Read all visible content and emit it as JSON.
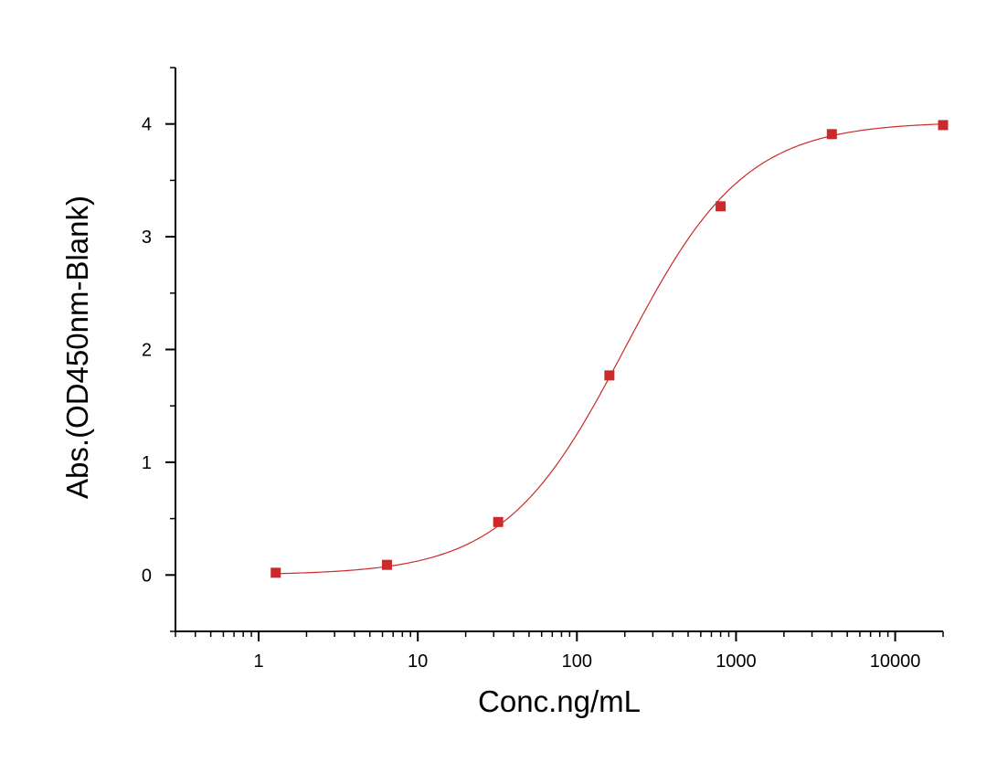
{
  "chart_data": {
    "type": "scatter",
    "title": "",
    "xlabel": "Conc.ng/mL",
    "ylabel": "Abs.(OD450nm-Blank)",
    "x_scale": "log",
    "xlim": [
      0.3,
      20000
    ],
    "ylim": [
      -0.5,
      4.5
    ],
    "x_ticks": [
      1,
      10,
      100,
      1000,
      10000
    ],
    "x_tick_labels": [
      "1",
      "10",
      "100",
      "1000",
      "10000"
    ],
    "y_ticks": [
      0,
      1,
      2,
      3,
      4
    ],
    "y_tick_labels": [
      "0",
      "1",
      "2",
      "3",
      "4"
    ],
    "grid": false,
    "legend": "none",
    "series": [
      {
        "x": [
          1.28,
          6.4,
          32,
          160,
          800,
          4000,
          20000
        ],
        "y": [
          0.02,
          0.09,
          0.47,
          1.77,
          3.27,
          3.91,
          3.99
        ],
        "marker": "square",
        "color": "#cc2a2a"
      }
    ],
    "fit_curve": {
      "type": "4PL",
      "bottom": 0.0,
      "top": 4.02,
      "ec50": 200,
      "hill": 1.15,
      "color": "#cc2a2a"
    }
  }
}
